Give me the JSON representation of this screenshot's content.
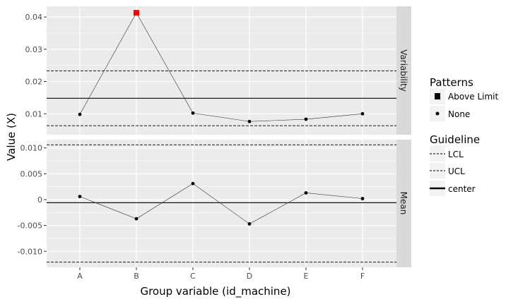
{
  "chart_data": {
    "type": "line",
    "xlabel": "Group variable (id_machine)",
    "ylabel": "Value (X)",
    "categories": [
      "A",
      "B",
      "C",
      "D",
      "E",
      "F"
    ],
    "facets": [
      {
        "name": "Variability",
        "ylim": [
          0.0035,
          0.0433
        ],
        "yticks": [
          0.01,
          0.02,
          0.03,
          0.04
        ],
        "ytick_labels": [
          "0.01",
          "0.02",
          "0.03",
          "0.04"
        ],
        "values": [
          0.0098,
          0.0413,
          0.0102,
          0.0076,
          0.0083,
          0.01
        ],
        "patterns": [
          "None",
          "Above Limit",
          "None",
          "None",
          "None",
          "None"
        ],
        "lines": {
          "LCL": 0.0063,
          "UCL": 0.0233,
          "center": 0.0148
        }
      },
      {
        "name": "Mean",
        "ylim": [
          -0.0131,
          0.0116
        ],
        "yticks": [
          -0.01,
          -0.005,
          0,
          0.005,
          0.01
        ],
        "ytick_labels": [
          "-0.010",
          "-0.005",
          "0",
          "0.005",
          "0.010"
        ],
        "values": [
          0.0006,
          -0.0037,
          0.0031,
          -0.0047,
          0.0013,
          0.0002
        ],
        "patterns": [
          "None",
          "None",
          "None",
          "None",
          "None",
          "None"
        ],
        "lines": {
          "LCL": -0.0121,
          "UCL": 0.0106,
          "center": -0.0006
        }
      }
    ],
    "legends": [
      {
        "title": "Patterns",
        "items": [
          "Above Limit",
          "None"
        ]
      },
      {
        "title": "Guideline",
        "items": [
          "LCL",
          "UCL",
          "center"
        ]
      }
    ],
    "colors": {
      "panel_bg": "#ebebeb",
      "grid": "#ffffff",
      "strip_bg": "#d9d9d9",
      "highlight": "#ff0000",
      "point": "#000000"
    },
    "grid": true,
    "legend_position": "right"
  }
}
